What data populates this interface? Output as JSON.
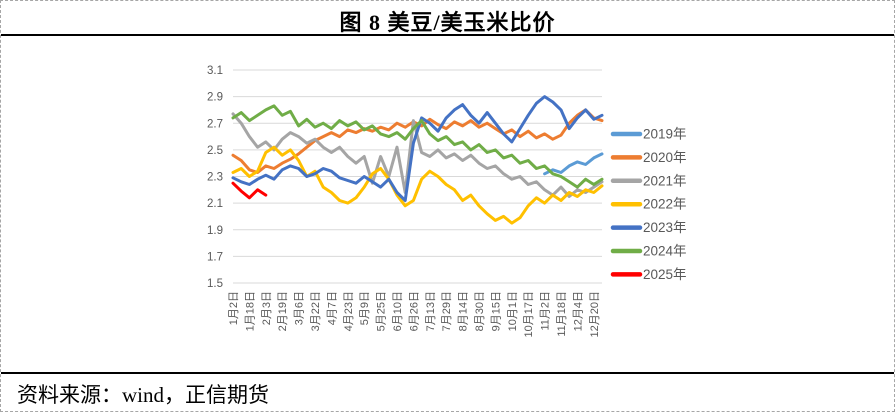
{
  "header": {
    "title": "图 8 美豆/美玉米比价"
  },
  "footer": {
    "source": "资料来源：wind，正信期货"
  },
  "chart_data": {
    "type": "line",
    "title": "图 8 美豆/美玉米比价",
    "ylim": [
      1.5,
      3.1
    ],
    "y_ticks": [
      3.1,
      2.9,
      2.7,
      2.5,
      2.3,
      2.1,
      1.9,
      1.7,
      1.5
    ],
    "grid": true,
    "grid_color": "#D9D9D9",
    "tick_label_color": "#595959",
    "legend_position": "right",
    "x_labels": [
      "1月2日",
      "1月18日",
      "2月3日",
      "2月19日",
      "3月6日",
      "3月22日",
      "4月7日",
      "4月23日",
      "5月9日",
      "5月25日",
      "6月10日",
      "6月26日",
      "7月13日",
      "7月29日",
      "8月14日",
      "8月30日",
      "9月15日",
      "10月1日",
      "10月17日",
      "11月2日",
      "11月18日",
      "12月4日",
      "12月20日"
    ],
    "series": [
      {
        "name": "2019年",
        "color": "#5B9BD5",
        "start_index": 38,
        "values": [
          2.32,
          2.35,
          2.33,
          2.38,
          2.41,
          2.39,
          2.44,
          2.47
        ]
      },
      {
        "name": "2020年",
        "color": "#ED7D31",
        "start_index": 0,
        "values": [
          2.46,
          2.42,
          2.35,
          2.33,
          2.38,
          2.36,
          2.4,
          2.43,
          2.47,
          2.52,
          2.57,
          2.6,
          2.63,
          2.6,
          2.65,
          2.63,
          2.66,
          2.64,
          2.67,
          2.65,
          2.7,
          2.67,
          2.71,
          2.68,
          2.73,
          2.69,
          2.66,
          2.71,
          2.68,
          2.72,
          2.67,
          2.7,
          2.66,
          2.62,
          2.65,
          2.6,
          2.64,
          2.59,
          2.62,
          2.58,
          2.61,
          2.7,
          2.76,
          2.8,
          2.74,
          2.72
        ]
      },
      {
        "name": "2021年",
        "color": "#A5A5A5",
        "start_index": 0,
        "values": [
          2.77,
          2.7,
          2.6,
          2.52,
          2.56,
          2.5,
          2.58,
          2.63,
          2.6,
          2.55,
          2.58,
          2.52,
          2.48,
          2.52,
          2.45,
          2.4,
          2.45,
          2.25,
          2.45,
          2.3,
          2.52,
          2.18,
          2.72,
          2.48,
          2.45,
          2.5,
          2.44,
          2.47,
          2.42,
          2.46,
          2.4,
          2.36,
          2.38,
          2.32,
          2.28,
          2.3,
          2.24,
          2.26,
          2.2,
          2.16,
          2.22,
          2.15,
          2.2,
          2.18,
          2.22,
          2.26
        ]
      },
      {
        "name": "2022年",
        "color": "#FFC000",
        "start_index": 0,
        "values": [
          2.33,
          2.36,
          2.3,
          2.34,
          2.48,
          2.52,
          2.46,
          2.5,
          2.42,
          2.3,
          2.34,
          2.22,
          2.18,
          2.12,
          2.1,
          2.14,
          2.22,
          2.32,
          2.36,
          2.28,
          2.16,
          2.08,
          2.12,
          2.28,
          2.34,
          2.3,
          2.24,
          2.2,
          2.12,
          2.16,
          2.08,
          2.02,
          1.97,
          2.0,
          1.95,
          1.99,
          2.08,
          2.14,
          2.1,
          2.16,
          2.12,
          2.18,
          2.15,
          2.2,
          2.18,
          2.23
        ]
      },
      {
        "name": "2023年",
        "color": "#4472C4",
        "start_index": 0,
        "values": [
          2.29,
          2.26,
          2.24,
          2.28,
          2.31,
          2.28,
          2.35,
          2.38,
          2.36,
          2.3,
          2.32,
          2.36,
          2.34,
          2.29,
          2.27,
          2.25,
          2.3,
          2.26,
          2.22,
          2.28,
          2.18,
          2.12,
          2.55,
          2.74,
          2.7,
          2.64,
          2.74,
          2.8,
          2.84,
          2.76,
          2.7,
          2.78,
          2.7,
          2.62,
          2.56,
          2.66,
          2.76,
          2.85,
          2.9,
          2.86,
          2.8,
          2.66,
          2.74,
          2.8,
          2.73,
          2.76
        ]
      },
      {
        "name": "2024年",
        "color": "#70AD47",
        "start_index": 0,
        "values": [
          2.74,
          2.78,
          2.72,
          2.76,
          2.8,
          2.83,
          2.76,
          2.79,
          2.68,
          2.73,
          2.67,
          2.7,
          2.66,
          2.72,
          2.68,
          2.71,
          2.65,
          2.68,
          2.62,
          2.6,
          2.63,
          2.58,
          2.66,
          2.72,
          2.62,
          2.57,
          2.6,
          2.54,
          2.56,
          2.5,
          2.54,
          2.48,
          2.5,
          2.44,
          2.46,
          2.4,
          2.42,
          2.36,
          2.38,
          2.32,
          2.3,
          2.26,
          2.22,
          2.28,
          2.24,
          2.28
        ]
      },
      {
        "name": "2025年",
        "color": "#FF0000",
        "start_index": 0,
        "values": [
          2.25,
          2.19,
          2.14,
          2.2,
          2.16
        ]
      }
    ]
  }
}
